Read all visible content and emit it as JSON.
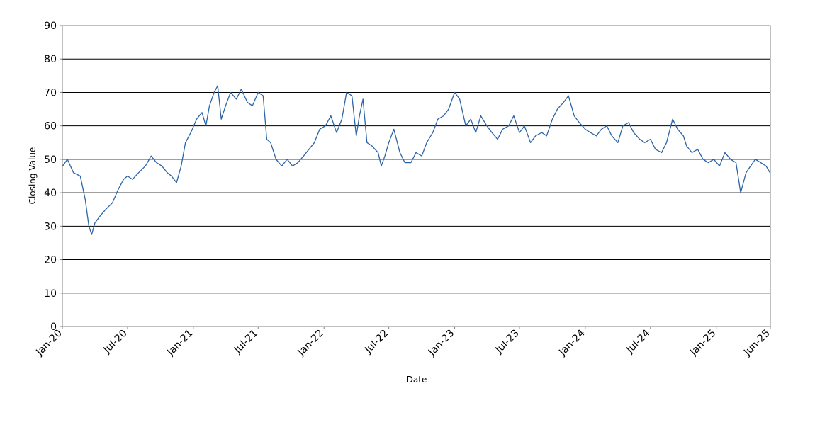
{
  "chart_data": {
    "type": "line",
    "title": "",
    "xlabel": "Date",
    "ylabel": "Closing Value",
    "ylim": [
      0,
      90
    ],
    "xlim": [
      "2020-01-01",
      "2025-06-01"
    ],
    "grid": "horizontal",
    "legend": "none",
    "line_color": "#2c64a6",
    "yticks": [
      0,
      10,
      20,
      30,
      40,
      50,
      60,
      70,
      80,
      90
    ],
    "xticks": [
      {
        "date": "2020-01-01",
        "label": "Jan-20"
      },
      {
        "date": "2020-07-01",
        "label": "Jul-20"
      },
      {
        "date": "2021-01-01",
        "label": "Jan-21"
      },
      {
        "date": "2021-07-01",
        "label": "Jul-21"
      },
      {
        "date": "2022-01-01",
        "label": "Jan-22"
      },
      {
        "date": "2022-07-01",
        "label": "Jul-22"
      },
      {
        "date": "2023-01-01",
        "label": "Jan-23"
      },
      {
        "date": "2023-07-01",
        "label": "Jul-23"
      },
      {
        "date": "2024-01-01",
        "label": "Jan-24"
      },
      {
        "date": "2024-07-01",
        "label": "Jul-24"
      },
      {
        "date": "2025-01-01",
        "label": "Jan-25"
      },
      {
        "date": "2025-06-01",
        "label": "Jun-25"
      }
    ],
    "series": [
      {
        "x": [
          "2020-01-02",
          "2020-01-15",
          "2020-02-01",
          "2020-02-20",
          "2020-03-05",
          "2020-03-15",
          "2020-03-23",
          "2020-04-01",
          "2020-04-15",
          "2020-05-01",
          "2020-05-20",
          "2020-06-05",
          "2020-06-20",
          "2020-07-01",
          "2020-07-15",
          "2020-08-01",
          "2020-08-20",
          "2020-09-05",
          "2020-09-20",
          "2020-10-05",
          "2020-10-20",
          "2020-11-01",
          "2020-11-15",
          "2020-11-28",
          "2020-12-10",
          "2020-12-25",
          "2021-01-10",
          "2021-01-25",
          "2021-02-05",
          "2021-02-15",
          "2021-02-28",
          "2021-03-10",
          "2021-03-20",
          "2021-04-01",
          "2021-04-15",
          "2021-05-01",
          "2021-05-15",
          "2021-06-01",
          "2021-06-15",
          "2021-07-01",
          "2021-07-15",
          "2021-07-25",
          "2021-08-05",
          "2021-08-20",
          "2021-09-05",
          "2021-09-20",
          "2021-10-05",
          "2021-10-20",
          "2021-11-05",
          "2021-11-20",
          "2021-12-05",
          "2021-12-20",
          "2022-01-05",
          "2022-01-20",
          "2022-02-05",
          "2022-02-20",
          "2022-03-05",
          "2022-03-20",
          "2022-04-01",
          "2022-04-10",
          "2022-04-20",
          "2022-05-01",
          "2022-05-15",
          "2022-06-01",
          "2022-06-10",
          "2022-06-20",
          "2022-07-01",
          "2022-07-15",
          "2022-08-01",
          "2022-08-15",
          "2022-09-01",
          "2022-09-15",
          "2022-10-01",
          "2022-10-15",
          "2022-11-01",
          "2022-11-15",
          "2022-12-01",
          "2022-12-15",
          "2023-01-01",
          "2023-01-15",
          "2023-02-01",
          "2023-02-15",
          "2023-03-01",
          "2023-03-15",
          "2023-04-01",
          "2023-04-15",
          "2023-05-01",
          "2023-05-15",
          "2023-06-01",
          "2023-06-15",
          "2023-07-01",
          "2023-07-15",
          "2023-08-01",
          "2023-08-15",
          "2023-09-01",
          "2023-09-15",
          "2023-10-01",
          "2023-10-15",
          "2023-11-01",
          "2023-11-15",
          "2023-12-01",
          "2023-12-15",
          "2024-01-01",
          "2024-01-15",
          "2024-02-01",
          "2024-02-15",
          "2024-03-01",
          "2024-03-15",
          "2024-04-01",
          "2024-04-15",
          "2024-05-01",
          "2024-05-15",
          "2024-06-01",
          "2024-06-15",
          "2024-07-01",
          "2024-07-15",
          "2024-08-01",
          "2024-08-15",
          "2024-09-01",
          "2024-09-15",
          "2024-10-01",
          "2024-10-10",
          "2024-10-25",
          "2024-11-10",
          "2024-11-25",
          "2024-12-10",
          "2024-12-25",
          "2025-01-10",
          "2025-01-25",
          "2025-02-10",
          "2025-02-25",
          "2025-03-10",
          "2025-03-25",
          "2025-04-07",
          "2025-04-20",
          "2025-05-05",
          "2025-05-20",
          "2025-05-31"
        ],
        "values": [
          48,
          50,
          46,
          45,
          38,
          30,
          27.5,
          31,
          33,
          35,
          37,
          41,
          44,
          45,
          44,
          46,
          48,
          51,
          49,
          48,
          46,
          45,
          43,
          48,
          55,
          58,
          62,
          64,
          60,
          66,
          70,
          72,
          62,
          66,
          70,
          68,
          71,
          67,
          66,
          70,
          69,
          56,
          55,
          50,
          48,
          50,
          48,
          49,
          51,
          53,
          55,
          59,
          60,
          63,
          58,
          62,
          70,
          69,
          57,
          63,
          68,
          55,
          54,
          52,
          48,
          51,
          55,
          59,
          52,
          49,
          49,
          52,
          51,
          55,
          58,
          62,
          63,
          65,
          70,
          68,
          60,
          62,
          58,
          63,
          60,
          58,
          56,
          59,
          60,
          63,
          58,
          60,
          55,
          57,
          58,
          57,
          62,
          65,
          67,
          69,
          63,
          61,
          59,
          58,
          57,
          59,
          60,
          57,
          55,
          60,
          61,
          58,
          56,
          55,
          56,
          53,
          52,
          55,
          62,
          59,
          57,
          54,
          52,
          53,
          50,
          49,
          50,
          48,
          52,
          50,
          49,
          40,
          46,
          48,
          50,
          49,
          48,
          46
        ]
      }
    ]
  }
}
